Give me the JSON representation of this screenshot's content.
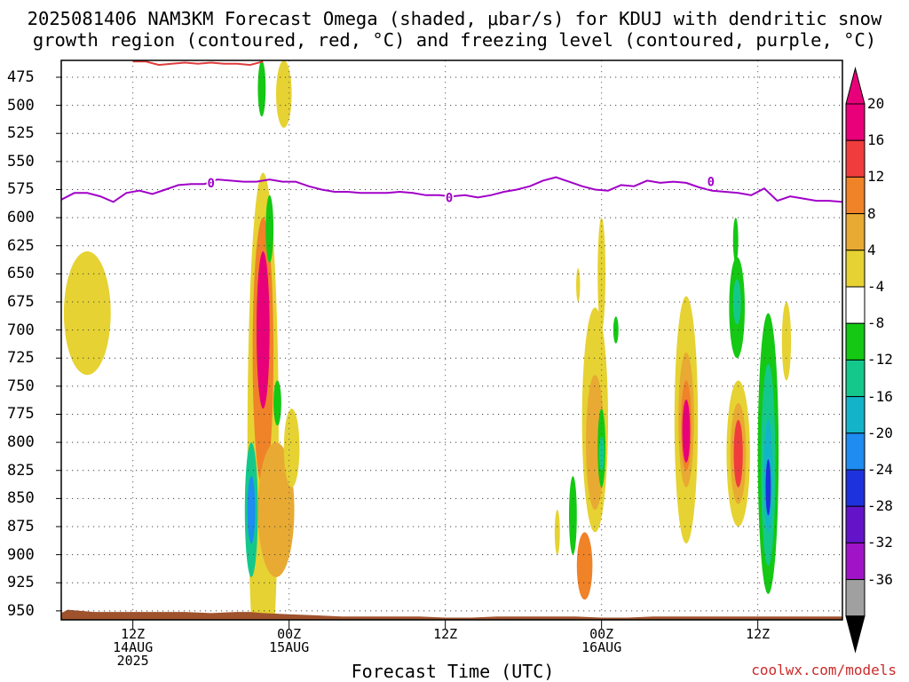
{
  "title_line1": "2025081406 NAM3KM Forecast Omega (shaded, μbar/s) for KDUJ with dendritic snow",
  "title_line2": "growth region (contoured, red, °C) and freezing level (contoured, purple, °C)",
  "credit": "coolwx.com/models",
  "chart_data": {
    "type": "heatmap",
    "xlabel": "Forecast Time (UTC)",
    "ylabel": "",
    "x_range_hours": [
      -5.5,
      54.5
    ],
    "x_ticks": [
      {
        "hour": 0,
        "lines": [
          "12Z",
          "14AUG",
          "2025"
        ]
      },
      {
        "hour": 12,
        "lines": [
          "00Z",
          "15AUG"
        ]
      },
      {
        "hour": 24,
        "lines": [
          "12Z"
        ]
      },
      {
        "hour": 36,
        "lines": [
          "00Z",
          "16AUG"
        ]
      },
      {
        "hour": 48,
        "lines": [
          "12Z"
        ]
      }
    ],
    "y_range_hpa": [
      460,
      958
    ],
    "y_ticks": [
      475,
      500,
      525,
      550,
      575,
      600,
      625,
      650,
      675,
      700,
      725,
      750,
      775,
      800,
      825,
      850,
      875,
      900,
      925,
      950
    ],
    "grid": true,
    "colorbar": {
      "labels": [
        "20",
        "16",
        "12",
        "8",
        "4",
        "-4",
        "-8",
        "-12",
        "-16",
        "-20",
        "-24",
        "-28",
        "-32",
        "-36"
      ],
      "colors": [
        "#e8007a",
        "#f03c3c",
        "#f08228",
        "#e8aa32",
        "#e6d232",
        "#ffffff",
        "#14c814",
        "#14c88c",
        "#14b4c8",
        "#1e8cf0",
        "#1e32dc",
        "#6414c8",
        "#a014c8",
        "#a0a0a0"
      ],
      "top_arrow_color": "#e8007a",
      "bottom_arrow_color": "#000000"
    },
    "omega_features": [
      {
        "x": -3.5,
        "p": 685,
        "w": 1.8,
        "h": 55,
        "v": 4
      },
      {
        "x": 10,
        "p": 800,
        "w": 1.2,
        "h": 240,
        "v": 4
      },
      {
        "x": 10,
        "p": 720,
        "w": 0.8,
        "h": 120,
        "v": 12
      },
      {
        "x": 10,
        "p": 700,
        "w": 0.5,
        "h": 70,
        "v": 20
      },
      {
        "x": 11,
        "p": 860,
        "w": 1.4,
        "h": 60,
        "v": 8
      },
      {
        "x": 9.1,
        "p": 860,
        "w": 0.5,
        "h": 60,
        "v": -12
      },
      {
        "x": 9.1,
        "p": 860,
        "w": 0.3,
        "h": 30,
        "v": -20
      },
      {
        "x": 9.9,
        "p": 485,
        "w": 0.3,
        "h": 25,
        "v": -4
      },
      {
        "x": 10.5,
        "p": 610,
        "w": 0.3,
        "h": 30,
        "v": -4
      },
      {
        "x": 11.1,
        "p": 765,
        "w": 0.3,
        "h": 20,
        "v": -4
      },
      {
        "x": 11.6,
        "p": 490,
        "w": 0.6,
        "h": 30,
        "v": 4
      },
      {
        "x": 12.2,
        "p": 805,
        "w": 0.6,
        "h": 35,
        "v": 4
      },
      {
        "x": 35.5,
        "p": 780,
        "w": 1.0,
        "h": 100,
        "v": 4
      },
      {
        "x": 35.5,
        "p": 800,
        "w": 0.7,
        "h": 60,
        "v": 8
      },
      {
        "x": 34.7,
        "p": 910,
        "w": 0.6,
        "h": 30,
        "v": 12
      },
      {
        "x": 36.0,
        "p": 650,
        "w": 0.3,
        "h": 50,
        "v": 4
      },
      {
        "x": 36.0,
        "p": 805,
        "w": 0.3,
        "h": 35,
        "v": -4
      },
      {
        "x": 36.0,
        "p": 810,
        "w": 0.2,
        "h": 15,
        "v": -12
      },
      {
        "x": 33.8,
        "p": 865,
        "w": 0.3,
        "h": 35,
        "v": -4
      },
      {
        "x": 32.6,
        "p": 880,
        "w": 0.2,
        "h": 20,
        "v": 4
      },
      {
        "x": 34.2,
        "p": 660,
        "w": 0.15,
        "h": 15,
        "v": 4
      },
      {
        "x": 37.1,
        "p": 700,
        "w": 0.2,
        "h": 12,
        "v": -4
      },
      {
        "x": 42.5,
        "p": 780,
        "w": 0.9,
        "h": 110,
        "v": 4
      },
      {
        "x": 42.5,
        "p": 780,
        "w": 0.6,
        "h": 60,
        "v": 8
      },
      {
        "x": 42.5,
        "p": 785,
        "w": 0.4,
        "h": 40,
        "v": 12
      },
      {
        "x": 42.5,
        "p": 790,
        "w": 0.3,
        "h": 28,
        "v": 20
      },
      {
        "x": 46.5,
        "p": 810,
        "w": 0.9,
        "h": 65,
        "v": 4
      },
      {
        "x": 46.5,
        "p": 810,
        "w": 0.6,
        "h": 45,
        "v": 8
      },
      {
        "x": 46.5,
        "p": 810,
        "w": 0.35,
        "h": 30,
        "v": 16
      },
      {
        "x": 46.4,
        "p": 680,
        "w": 0.6,
        "h": 45,
        "v": -4
      },
      {
        "x": 46.4,
        "p": 675,
        "w": 0.3,
        "h": 20,
        "v": -12
      },
      {
        "x": 46.3,
        "p": 620,
        "w": 0.2,
        "h": 20,
        "v": -4
      },
      {
        "x": 48.8,
        "p": 810,
        "w": 0.8,
        "h": 125,
        "v": -4
      },
      {
        "x": 48.8,
        "p": 820,
        "w": 0.55,
        "h": 90,
        "v": -12
      },
      {
        "x": 48.8,
        "p": 830,
        "w": 0.35,
        "h": 50,
        "v": -16
      },
      {
        "x": 48.8,
        "p": 840,
        "w": 0.2,
        "h": 25,
        "v": -24
      },
      {
        "x": 50.2,
        "p": 710,
        "w": 0.35,
        "h": 35,
        "v": 4
      }
    ],
    "freezing_level": {
      "label": "0",
      "color": "#a000c8",
      "x": [
        -5.5,
        -4.5,
        -3.5,
        -2.5,
        -1.5,
        -0.5,
        0.5,
        1.5,
        2.5,
        3.5,
        4.5,
        5.5,
        6.5,
        7.5,
        8.5,
        9.5,
        10.5,
        11.5,
        12.5,
        13.5,
        14.5,
        15.5,
        16.5,
        17.5,
        18.5,
        19.5,
        20.5,
        21.5,
        22.5,
        23.5,
        24.5,
        25.5,
        26.5,
        27.5,
        28.5,
        29.5,
        30.5,
        31.5,
        32.5,
        33.5,
        34.5,
        35.5,
        36.5,
        37.5,
        38.5,
        39.5,
        40.5,
        41.5,
        42.5,
        43.5,
        44.5,
        45.5,
        46.5,
        47.5,
        48.5,
        49.5,
        50.5,
        51.5,
        52.5,
        53.5,
        54.5
      ],
      "p": [
        584,
        578,
        578,
        581,
        586,
        578,
        576,
        579,
        575,
        571,
        570,
        570,
        566,
        567,
        568,
        568,
        566,
        568,
        568,
        572,
        575,
        577,
        577,
        578,
        578,
        578,
        577,
        578,
        580,
        580,
        581,
        580,
        582,
        580,
        577,
        575,
        572,
        567,
        564,
        568,
        572,
        575,
        576,
        571,
        572,
        567,
        569,
        568,
        569,
        573,
        576,
        577,
        578,
        580,
        574,
        585,
        581,
        583,
        585,
        585,
        586
      ],
      "label_positions": [
        {
          "x": 6.0,
          "p": 569
        },
        {
          "x": 24.3,
          "p": 582
        },
        {
          "x": 44.4,
          "p": 568
        }
      ]
    },
    "dgz_contour": {
      "color": "#e03c3c",
      "x": [
        0,
        1,
        2,
        3,
        4,
        5,
        6,
        7,
        8,
        9,
        10
      ],
      "p": [
        461,
        461,
        464,
        463,
        462,
        463,
        462,
        463,
        463,
        464,
        461
      ]
    },
    "terrain": {
      "color": "#a0522d",
      "x": [
        -5.5,
        -5,
        -4,
        -3,
        -2,
        -1,
        0,
        2,
        4,
        6,
        8,
        9,
        10,
        12,
        14,
        16,
        18,
        20,
        22,
        24,
        26,
        28,
        30,
        32,
        34,
        36,
        38,
        40,
        42,
        44,
        46,
        48,
        50,
        52,
        54.5
      ],
      "p": [
        952,
        949,
        950,
        951,
        951,
        951,
        951,
        951,
        951,
        952,
        951,
        951,
        952,
        953,
        954,
        955,
        955,
        955,
        955,
        956,
        956,
        955,
        955,
        955,
        955,
        956,
        956,
        955,
        955,
        955,
        955,
        955,
        955,
        955,
        955
      ]
    }
  }
}
